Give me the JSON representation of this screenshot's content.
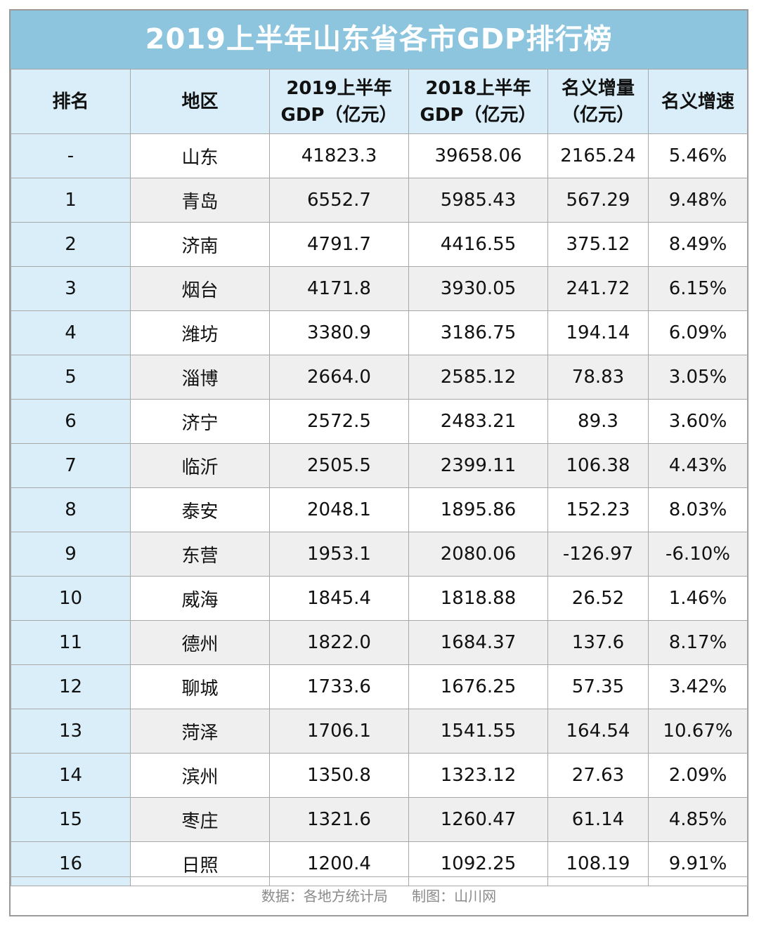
{
  "title": "2019上半年山东省各市GDP排行榜",
  "headers": {
    "rank": "排名",
    "region": "地区",
    "gdp2019_line1": "2019上半年",
    "gdp2019_line2": "GDP（亿元）",
    "gdp2018_line1": "2018上半年",
    "gdp2018_line2": "GDP（亿元）",
    "increase_line1": "名义增量",
    "increase_line2": "（亿元）",
    "growth": "名义增速"
  },
  "rows": [
    {
      "rank": "-",
      "region": "山东",
      "gdp2019": "41823.3",
      "gdp2018": "39658.06",
      "increase": "2165.24",
      "growth": "5.46%"
    },
    {
      "rank": "1",
      "region": "青岛",
      "gdp2019": "6552.7",
      "gdp2018": "5985.43",
      "increase": "567.29",
      "growth": "9.48%"
    },
    {
      "rank": "2",
      "region": "济南",
      "gdp2019": "4791.7",
      "gdp2018": "4416.55",
      "increase": "375.12",
      "growth": "8.49%"
    },
    {
      "rank": "3",
      "region": "烟台",
      "gdp2019": "4171.8",
      "gdp2018": "3930.05",
      "increase": "241.72",
      "growth": "6.15%"
    },
    {
      "rank": "4",
      "region": "潍坊",
      "gdp2019": "3380.9",
      "gdp2018": "3186.75",
      "increase": "194.14",
      "growth": "6.09%"
    },
    {
      "rank": "5",
      "region": "淄博",
      "gdp2019": "2664.0",
      "gdp2018": "2585.12",
      "increase": "78.83",
      "growth": "3.05%"
    },
    {
      "rank": "6",
      "region": "济宁",
      "gdp2019": "2572.5",
      "gdp2018": "2483.21",
      "increase": "89.3",
      "growth": "3.60%"
    },
    {
      "rank": "7",
      "region": "临沂",
      "gdp2019": "2505.5",
      "gdp2018": "2399.11",
      "increase": "106.38",
      "growth": "4.43%"
    },
    {
      "rank": "8",
      "region": "泰安",
      "gdp2019": "2048.1",
      "gdp2018": "1895.86",
      "increase": "152.23",
      "growth": "8.03%"
    },
    {
      "rank": "9",
      "region": "东营",
      "gdp2019": "1953.1",
      "gdp2018": "2080.06",
      "increase": "-126.97",
      "growth": "-6.10%"
    },
    {
      "rank": "10",
      "region": "威海",
      "gdp2019": "1845.4",
      "gdp2018": "1818.88",
      "increase": "26.52",
      "growth": "1.46%"
    },
    {
      "rank": "11",
      "region": "德州",
      "gdp2019": "1822.0",
      "gdp2018": "1684.37",
      "increase": "137.6",
      "growth": "8.17%"
    },
    {
      "rank": "12",
      "region": "聊城",
      "gdp2019": "1733.6",
      "gdp2018": "1676.25",
      "increase": "57.35",
      "growth": "3.42%"
    },
    {
      "rank": "13",
      "region": "菏泽",
      "gdp2019": "1706.1",
      "gdp2018": "1541.55",
      "increase": "164.54",
      "growth": "10.67%"
    },
    {
      "rank": "14",
      "region": "滨州",
      "gdp2019": "1350.8",
      "gdp2018": "1323.12",
      "increase": "27.63",
      "growth": "2.09%"
    },
    {
      "rank": "15",
      "region": "枣庄",
      "gdp2019": "1321.6",
      "gdp2018": "1260.47",
      "increase": "61.14",
      "growth": "4.85%"
    },
    {
      "rank": "16",
      "region": "日照",
      "gdp2019": "1200.4",
      "gdp2018": "1092.25",
      "increase": "108.19",
      "growth": "9.91%"
    }
  ],
  "footer": {
    "source": "数据：各地方统计局",
    "maker": "制图：山川网"
  },
  "watermark": "山川网",
  "colors": {
    "title_bg": "#8dc5df",
    "header_bg": "#d9eef8",
    "row_shade": "#efefef",
    "border": "#a8a8a8"
  }
}
